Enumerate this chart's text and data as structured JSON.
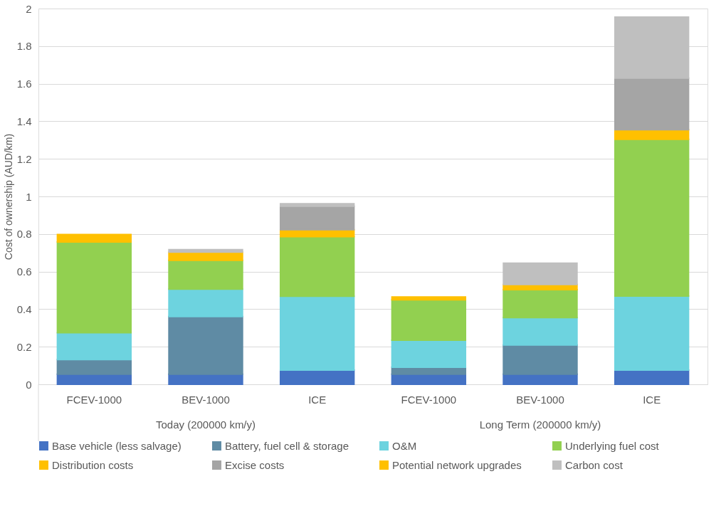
{
  "chart_data": {
    "type": "bar",
    "stacked": true,
    "ylabel": "Cost of ownership (AUD/km)",
    "categories": [
      "FCEV-1000",
      "BEV-1000",
      "ICE",
      "FCEV-1000",
      "BEV-1000",
      "ICE"
    ],
    "annotations": [
      "Today (200000 km/y)",
      "Long Term (200000 km/y)"
    ],
    "series": [
      {
        "name": "Base vehicle (less salvage)",
        "color": "#4472c4",
        "values": [
          0.054,
          0.054,
          0.076,
          0.054,
          0.054,
          0.076
        ]
      },
      {
        "name": "Battery, fuel cell & storage",
        "color": "#5f8ba4",
        "values": [
          0.078,
          0.307,
          null,
          0.037,
          0.155,
          null
        ]
      },
      {
        "name": "O&M",
        "color": "#6dd3df",
        "values": [
          0.143,
          0.146,
          0.393,
          0.144,
          0.146,
          0.394
        ]
      },
      {
        "name": "Underlying fuel cost",
        "color": "#92d050",
        "values": [
          0.483,
          0.153,
          0.317,
          0.215,
          0.149,
          0.834
        ]
      },
      {
        "name": "Distribution costs",
        "color": "#ffc000",
        "values": [
          0.039,
          null,
          0.037,
          0.015,
          null,
          0.051
        ]
      },
      {
        "name": "Excise costs",
        "color": "#a5a5a5",
        "values": [
          null,
          null,
          0.125,
          null,
          null,
          0.275
        ]
      },
      {
        "name": "Potential network upgrades",
        "color": "#ffc000",
        "values": [
          null,
          0.044,
          null,
          null,
          0.027,
          null
        ]
      },
      {
        "name": "Carbon cost",
        "color": "#bfbfbf",
        "values": [
          null,
          0.013,
          0.013,
          null,
          0.114,
          0.325
        ]
      }
    ],
    "ylim": [
      0,
      2
    ],
    "yticks": [
      0,
      0.2,
      0.4,
      0.6,
      0.8,
      1,
      1.2,
      1.4,
      1.6,
      1.8,
      2
    ],
    "grid": "y",
    "legend": "bottom"
  }
}
